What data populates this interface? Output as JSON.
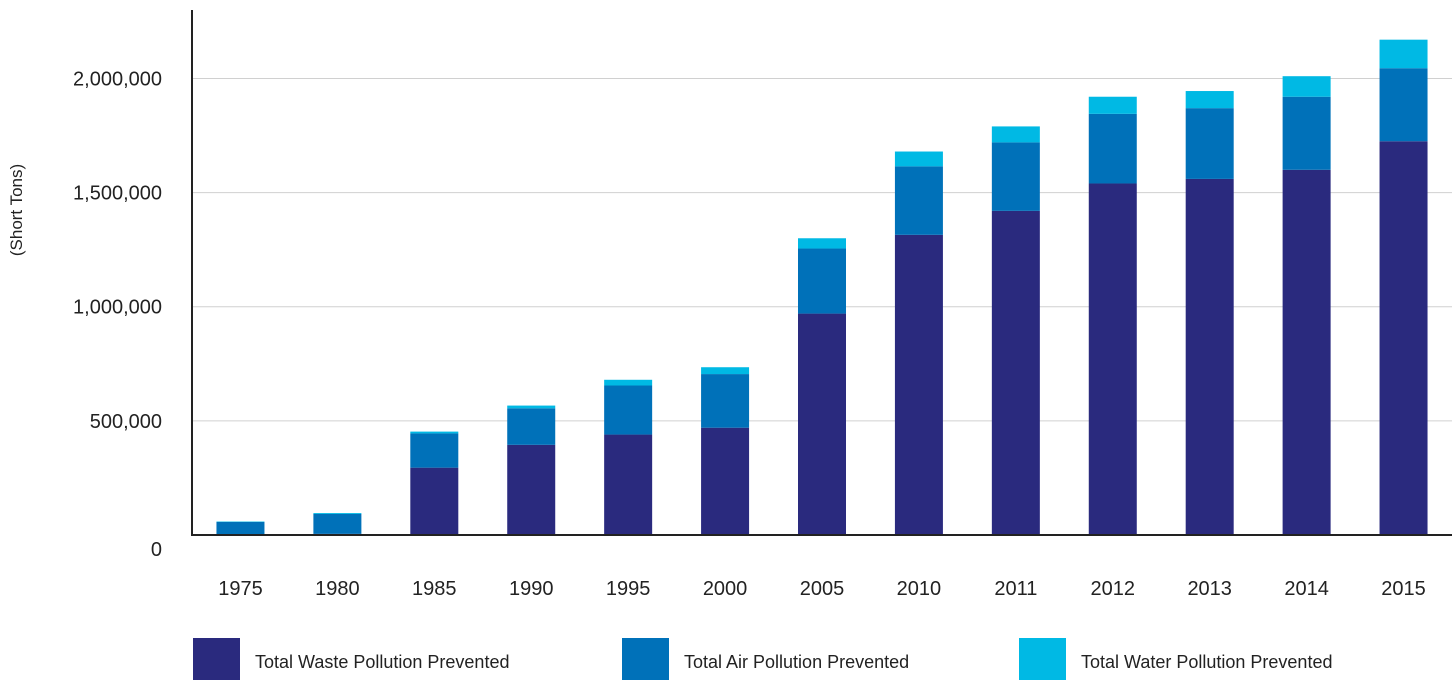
{
  "chart_data": {
    "type": "bar",
    "stacked": true,
    "ylabel": "(Short Tons)",
    "xlabel": "",
    "ylim": [
      0,
      2300000
    ],
    "yticks": [
      0,
      500000,
      1000000,
      1500000,
      2000000
    ],
    "ytick_labels": [
      "0",
      "500,000",
      "1,000,000",
      "1,500,000",
      "2,000,000"
    ],
    "grid": true,
    "legend_position": "bottom",
    "categories": [
      "1975",
      "1980",
      "1985",
      "1990",
      "1995",
      "2000",
      "2005",
      "2010",
      "2011",
      "2012",
      "2013",
      "2014",
      "2015"
    ],
    "series": [
      {
        "name": "Total Waste Pollution Prevented",
        "color": "#2a2a7e",
        "values": [
          2000,
          5000,
          295000,
          395000,
          440000,
          470000,
          970000,
          1315000,
          1420000,
          1540000,
          1560000,
          1600000,
          1725000
        ]
      },
      {
        "name": "Total Air Pollution Prevented",
        "color": "#0071b9",
        "values": [
          55000,
          87000,
          150000,
          160000,
          215000,
          235000,
          285000,
          300000,
          300000,
          305000,
          310000,
          320000,
          320000
        ]
      },
      {
        "name": "Total Water Pollution Prevented",
        "color": "#00b9e4",
        "values": [
          2000,
          4000,
          8000,
          12000,
          25000,
          30000,
          45000,
          65000,
          70000,
          75000,
          75000,
          90000,
          125000
        ]
      }
    ]
  }
}
